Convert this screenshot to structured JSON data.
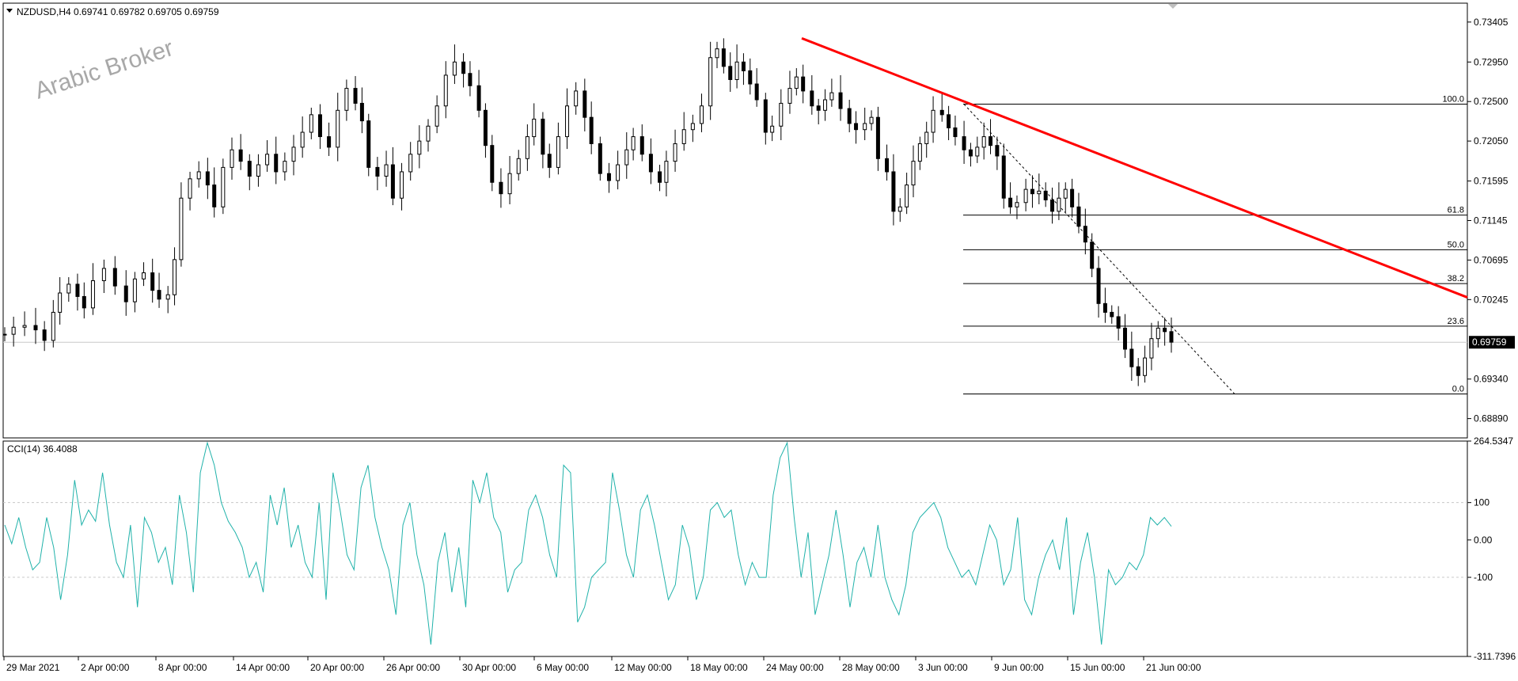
{
  "header": {
    "symbol_line": "NZDUSD,H4  0.69741 0.69782 0.69705 0.69759",
    "indicator_line": "CCI(14) 36.4088",
    "watermark": "Arabic Broker",
    "current_price": "0.69759"
  },
  "colors": {
    "candles": "#000000",
    "trendline": "#ff0000",
    "cci": "#20b2aa",
    "grid": "#c8c8c8",
    "price_tag_bg": "#000000"
  },
  "chart_data": [
    {
      "type": "candlestick",
      "symbol": "NZDUSD",
      "timeframe": "H4",
      "ylim": [
        0.6867,
        0.7362
      ],
      "price_ticks": [
        "0.73405",
        "0.72950",
        "0.72500",
        "0.72050",
        "0.71595",
        "0.71145",
        "0.70695",
        "0.70245",
        "0.69340",
        "0.68890"
      ],
      "x_labels": [
        "29 Mar 2021",
        "2 Apr 00:00",
        "8 Apr 00:00",
        "14 Apr 00:00",
        "20 Apr 00:00",
        "26 Apr 00:00",
        "30 Apr 00:00",
        "6 May 00:00",
        "12 May 00:00",
        "18 May 00:00",
        "24 May 00:00",
        "28 May 00:00",
        "3 Jun 00:00",
        "9 Jun 00:00",
        "15 Jun 00:00",
        "21 Jun 00:00"
      ],
      "close_path": [
        [
          0,
          0.6985
        ],
        [
          8,
          0.6993
        ],
        [
          18,
          0.6995
        ],
        [
          28,
          0.699
        ],
        [
          36,
          0.6978
        ],
        [
          44,
          0.701
        ],
        [
          50,
          0.7032
        ],
        [
          58,
          0.7042
        ],
        [
          66,
          0.7028
        ],
        [
          72,
          0.7015
        ],
        [
          80,
          0.7046
        ],
        [
          90,
          0.706
        ],
        [
          100,
          0.704
        ],
        [
          110,
          0.7022
        ],
        [
          118,
          0.7048
        ],
        [
          126,
          0.7055
        ],
        [
          134,
          0.7035
        ],
        [
          140,
          0.7025
        ],
        [
          148,
          0.703
        ],
        [
          154,
          0.707
        ],
        [
          160,
          0.714
        ],
        [
          168,
          0.7162
        ],
        [
          176,
          0.717
        ],
        [
          184,
          0.7155
        ],
        [
          190,
          0.713
        ],
        [
          198,
          0.7175
        ],
        [
          206,
          0.7195
        ],
        [
          214,
          0.7182
        ],
        [
          222,
          0.7165
        ],
        [
          230,
          0.7178
        ],
        [
          238,
          0.719
        ],
        [
          246,
          0.717
        ],
        [
          254,
          0.7182
        ],
        [
          262,
          0.7198
        ],
        [
          270,
          0.7215
        ],
        [
          278,
          0.7235
        ],
        [
          286,
          0.721
        ],
        [
          294,
          0.7198
        ],
        [
          302,
          0.724
        ],
        [
          310,
          0.7265
        ],
        [
          318,
          0.7248
        ],
        [
          324,
          0.7228
        ],
        [
          330,
          0.7175
        ],
        [
          338,
          0.7165
        ],
        [
          346,
          0.7178
        ],
        [
          352,
          0.714
        ],
        [
          360,
          0.717
        ],
        [
          368,
          0.719
        ],
        [
          376,
          0.7205
        ],
        [
          384,
          0.7222
        ],
        [
          392,
          0.7245
        ],
        [
          400,
          0.728
        ],
        [
          408,
          0.7295
        ],
        [
          416,
          0.7282
        ],
        [
          422,
          0.7268
        ],
        [
          430,
          0.724
        ],
        [
          436,
          0.72
        ],
        [
          442,
          0.7158
        ],
        [
          450,
          0.7145
        ],
        [
          458,
          0.7168
        ],
        [
          466,
          0.7185
        ],
        [
          474,
          0.721
        ],
        [
          480,
          0.723
        ],
        [
          488,
          0.719
        ],
        [
          494,
          0.7175
        ],
        [
          502,
          0.721
        ],
        [
          510,
          0.7245
        ],
        [
          518,
          0.7262
        ],
        [
          526,
          0.7232
        ],
        [
          532,
          0.7202
        ],
        [
          540,
          0.7168
        ],
        [
          548,
          0.716
        ],
        [
          556,
          0.7178
        ],
        [
          564,
          0.7195
        ],
        [
          570,
          0.721
        ],
        [
          578,
          0.719
        ],
        [
          586,
          0.717
        ],
        [
          594,
          0.7158
        ],
        [
          600,
          0.7182
        ],
        [
          608,
          0.7202
        ],
        [
          616,
          0.7218
        ],
        [
          624,
          0.7225
        ],
        [
          632,
          0.7245
        ],
        [
          640,
          0.73
        ],
        [
          646,
          0.731
        ],
        [
          652,
          0.729
        ],
        [
          658,
          0.7275
        ],
        [
          664,
          0.7295
        ],
        [
          670,
          0.7285
        ],
        [
          676,
          0.727
        ],
        [
          682,
          0.7252
        ],
        [
          690,
          0.7215
        ],
        [
          696,
          0.7222
        ],
        [
          704,
          0.7248
        ],
        [
          712,
          0.7265
        ],
        [
          718,
          0.7278
        ],
        [
          724,
          0.7262
        ],
        [
          732,
          0.7245
        ],
        [
          738,
          0.724
        ],
        [
          744,
          0.7252
        ],
        [
          750,
          0.726
        ],
        [
          758,
          0.7242
        ],
        [
          766,
          0.7225
        ],
        [
          772,
          0.7218
        ],
        [
          780,
          0.7225
        ],
        [
          786,
          0.7232
        ],
        [
          792,
          0.7185
        ],
        [
          800,
          0.717
        ],
        [
          806,
          0.7125
        ],
        [
          812,
          0.713
        ],
        [
          818,
          0.7155
        ],
        [
          824,
          0.7182
        ],
        [
          830,
          0.7202
        ],
        [
          836,
          0.7215
        ],
        [
          842,
          0.724
        ],
        [
          850,
          0.7235
        ],
        [
          856,
          0.722
        ],
        [
          862,
          0.721
        ],
        [
          870,
          0.7195
        ],
        [
          876,
          0.7188
        ],
        [
          882,
          0.7198
        ],
        [
          888,
          0.721
        ],
        [
          894,
          0.72
        ],
        [
          900,
          0.7188
        ],
        [
          906,
          0.714
        ],
        [
          912,
          0.713
        ],
        [
          918,
          0.7135
        ],
        [
          926,
          0.715
        ],
        [
          932,
          0.7145
        ],
        [
          938,
          0.7148
        ],
        [
          944,
          0.7138
        ],
        [
          950,
          0.7125
        ],
        [
          956,
          0.714
        ],
        [
          962,
          0.715
        ],
        [
          968,
          0.713
        ],
        [
          974,
          0.7108
        ],
        [
          980,
          0.709
        ],
        [
          986,
          0.706
        ],
        [
          992,
          0.702
        ],
        [
          998,
          0.701
        ],
        [
          1004,
          0.7005
        ],
        [
          1010,
          0.6992
        ],
        [
          1016,
          0.6968
        ],
        [
          1022,
          0.6948
        ],
        [
          1028,
          0.6938
        ],
        [
          1034,
          0.6958
        ],
        [
          1040,
          0.698
        ],
        [
          1046,
          0.6992
        ],
        [
          1052,
          0.6988
        ],
        [
          1058,
          0.6976
        ]
      ],
      "trendline": [
        [
          0.7322,
          0.7027
        ]
      ],
      "fibonacci": {
        "levels": [
          "100.0",
          "61.8",
          "50.0",
          "38.2",
          "23.6",
          "0.0"
        ],
        "values": [
          0.7247,
          0.71207,
          0.70812,
          0.70427,
          0.69942,
          0.6917
        ]
      }
    },
    {
      "type": "line",
      "name": "CCI(14)",
      "ylim": [
        -311.7396,
        264.5347
      ],
      "ticks": [
        "264.5347",
        "100",
        "0.00",
        "-100",
        "-311.7396"
      ],
      "reference_lines": [
        100,
        -100
      ],
      "values": [
        40,
        -10,
        60,
        -20,
        -80,
        -60,
        60,
        -20,
        -160,
        -40,
        160,
        40,
        80,
        50,
        180,
        40,
        -60,
        -100,
        40,
        -180,
        60,
        20,
        -60,
        -20,
        -120,
        120,
        20,
        -140,
        180,
        260,
        200,
        100,
        50,
        20,
        -20,
        -100,
        -60,
        -140,
        120,
        40,
        140,
        -20,
        40,
        -60,
        -100,
        100,
        -160,
        180,
        80,
        -40,
        -80,
        140,
        200,
        60,
        -20,
        -80,
        -200,
        40,
        100,
        -40,
        -120,
        -280,
        -60,
        20,
        -140,
        -20,
        -180,
        160,
        100,
        180,
        60,
        20,
        -140,
        -80,
        -60,
        80,
        120,
        60,
        -40,
        -100,
        200,
        180,
        -220,
        -180,
        -100,
        -80,
        -60,
        180,
        80,
        -40,
        -100,
        80,
        120,
        40,
        -60,
        -160,
        -120,
        40,
        -20,
        -160,
        -100,
        80,
        100,
        60,
        80,
        -40,
        -120,
        -60,
        -100,
        -100,
        120,
        220,
        260,
        60,
        -100,
        20,
        -200,
        -120,
        -40,
        80,
        -40,
        -180,
        -60,
        -20,
        -100,
        40,
        -100,
        -160,
        -200,
        -120,
        20,
        60,
        80,
        100,
        60,
        -20,
        -60,
        -100,
        -80,
        -120,
        -40,
        40,
        0,
        -120,
        -80,
        60,
        -160,
        -200,
        -100,
        -40,
        0,
        -80,
        60,
        -200,
        -60,
        20,
        -100,
        -280,
        -80,
        -120,
        -100,
        -60,
        -80,
        -40,
        60,
        40,
        60,
        36.41
      ]
    }
  ]
}
